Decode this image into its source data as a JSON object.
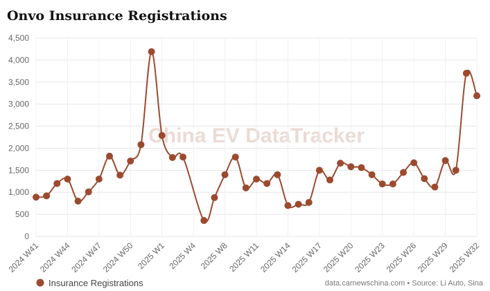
{
  "chart_data": {
    "type": "line",
    "title": "Onvo Insurance Registrations",
    "watermark": "China EV DataTracker",
    "source": "data.carnewschina.com • Source: Li Auto, Sina",
    "x": [
      0,
      1,
      2,
      3,
      4,
      5,
      6,
      7,
      8,
      9,
      10,
      11,
      12,
      13,
      14,
      16,
      17,
      18,
      19,
      20,
      21,
      22,
      23,
      24,
      25,
      26,
      27,
      28,
      29,
      30,
      31,
      32,
      33,
      34,
      35,
      36,
      37,
      38,
      39,
      40,
      41,
      42
    ],
    "series": [
      {
        "name": "Insurance Registrations",
        "color": "#9c4a2f",
        "values": [
          890,
          920,
          1200,
          1300,
          800,
          1010,
          1300,
          1820,
          1390,
          1710,
          2080,
          4190,
          2290,
          1790,
          1800,
          360,
          880,
          1400,
          1800,
          1100,
          1300,
          1200,
          1400,
          700,
          730,
          770,
          1500,
          1280,
          1660,
          1580,
          1560,
          1400,
          1190,
          1190,
          1450,
          1670,
          1310,
          1120,
          1720,
          1500,
          3700,
          3190
        ]
      }
    ],
    "xlim": [
      0,
      42
    ],
    "xticks": [
      {
        "value": 0,
        "label": "2024 W41"
      },
      {
        "value": 3,
        "label": "2024 W44"
      },
      {
        "value": 6,
        "label": "2024 W47"
      },
      {
        "value": 9,
        "label": "2024 W50"
      },
      {
        "value": 12,
        "label": "2025 W1"
      },
      {
        "value": 15,
        "label": "2025 W4"
      },
      {
        "value": 18,
        "label": "2025 W8"
      },
      {
        "value": 21,
        "label": "2025 W11"
      },
      {
        "value": 24,
        "label": "2025 W14"
      },
      {
        "value": 27,
        "label": "2025 W17"
      },
      {
        "value": 30,
        "label": "2025 W20"
      },
      {
        "value": 33,
        "label": "2025 W23"
      },
      {
        "value": 36,
        "label": "2025 W26"
      },
      {
        "value": 39,
        "label": "2025 W29"
      },
      {
        "value": 42,
        "label": "2025 W32"
      }
    ],
    "ylim": [
      0,
      4500
    ],
    "yticks": [
      0,
      {
        "value": 500,
        "label": "500"
      },
      {
        "value": 1000,
        "label": "1,000"
      },
      {
        "value": 1500,
        "label": "1,500"
      },
      {
        "value": 2000,
        "label": "2,000"
      },
      {
        "value": 2500,
        "label": "2,500"
      },
      {
        "value": 3000,
        "label": "3,000"
      },
      {
        "value": 3500,
        "label": "3,500"
      },
      {
        "value": 4000,
        "label": "4,000"
      },
      {
        "value": 4500,
        "label": "4,500"
      }
    ],
    "grid": true
  }
}
